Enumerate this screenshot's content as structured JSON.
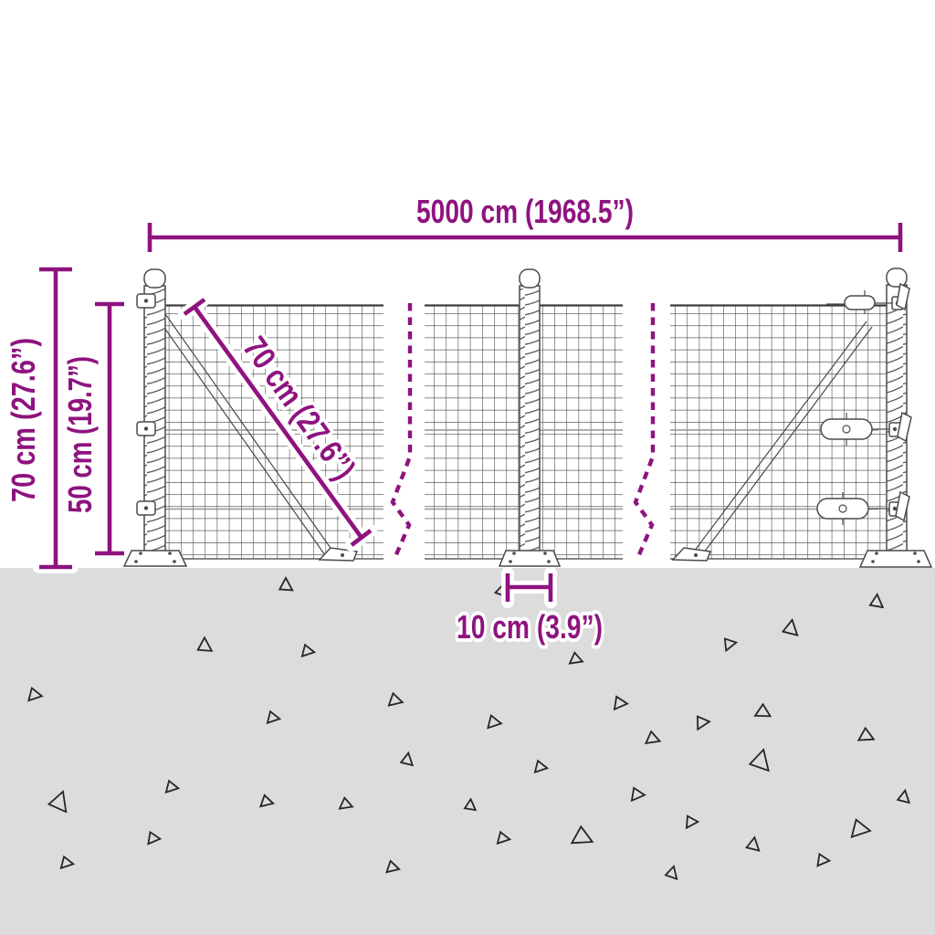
{
  "title": "Wire mesh fence dimension diagram",
  "colors": {
    "background": "#ffffff",
    "accent": "#8e137f",
    "ground": "#dcdcdc",
    "mesh": "#3d3d3d",
    "steel": "#4a4a4a",
    "triangle": "#262626"
  },
  "dimensions": {
    "total_width": "5000 cm (1968.5”)",
    "post_height": "70 cm (27.6”)",
    "mesh_height": "50 cm (19.7”)",
    "mesh_diagonal": "70 cm (27.6”)",
    "base_plate_width": "10 cm (3.9”)"
  },
  "ground": {
    "triangles": [
      [
        313,
        641,
        13,
        0
      ],
      [
        549,
        647,
        11,
        15
      ],
      [
        960,
        659,
        13,
        5
      ],
      [
        866,
        688,
        15,
        10
      ],
      [
        799,
        705,
        12,
        80
      ],
      [
        224,
        707,
        14,
        0
      ],
      [
        337,
        713,
        12,
        100
      ],
      [
        631,
        722,
        12,
        110
      ],
      [
        38,
        761,
        13,
        100
      ],
      [
        433,
        767,
        13,
        105
      ],
      [
        679,
        770,
        13,
        95
      ],
      [
        836,
        780,
        14,
        120
      ],
      [
        541,
        791,
        13,
        100
      ],
      [
        769,
        791,
        13,
        85
      ],
      [
        299,
        786,
        12,
        100
      ],
      [
        715,
        809,
        13,
        110
      ],
      [
        949,
        806,
        14,
        115
      ],
      [
        446,
        832,
        12,
        10
      ],
      [
        833,
        833,
        20,
        15
      ],
      [
        65,
        878,
        19,
        20
      ],
      [
        188,
        862,
        12,
        100
      ],
      [
        292,
        878,
        12,
        105
      ],
      [
        379,
        881,
        12,
        110
      ],
      [
        592,
        840,
        12,
        100
      ],
      [
        698,
        870,
        13,
        95
      ],
      [
        515,
        882,
        11,
        5
      ],
      [
        990,
        873,
        12,
        10
      ],
      [
        757,
        900,
        12,
        90
      ],
      [
        168,
        918,
        12,
        95
      ],
      [
        73,
        945,
        12,
        100
      ],
      [
        430,
        950,
        12,
        105
      ],
      [
        551,
        918,
        12,
        100
      ],
      [
        638,
        917,
        19,
        115
      ],
      [
        825,
        925,
        13,
        10
      ],
      [
        942,
        908,
        18,
        100
      ],
      [
        901,
        942,
        12,
        95
      ],
      [
        736,
        956,
        12,
        15
      ]
    ]
  }
}
